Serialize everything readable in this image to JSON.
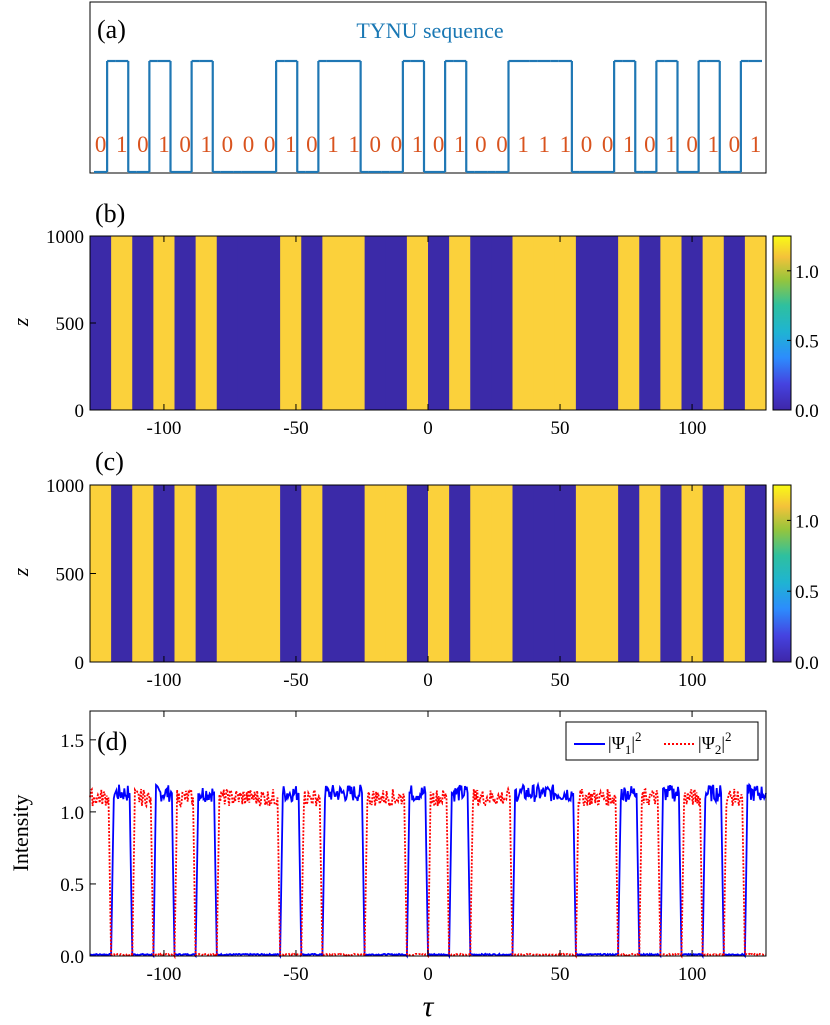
{
  "colors": {
    "seq_line": "#1f77b4",
    "seq_title": "#1a78b4",
    "bits": "#d9531e",
    "high": "#fbd13b",
    "low": "#3b2aa8",
    "psi1": "#0000ff",
    "psi2": "#ff0000"
  },
  "chart_data": [
    {
      "panel": "(a)",
      "type": "line",
      "title": "TYNU sequence",
      "sequence": [
        0,
        1,
        0,
        1,
        0,
        1,
        0,
        0,
        0,
        1,
        0,
        1,
        1,
        0,
        0,
        1,
        0,
        1,
        0,
        0,
        1,
        1,
        1,
        0,
        0,
        1,
        0,
        1,
        0,
        1,
        0,
        1
      ],
      "sequence_labels": [
        "0",
        "1",
        "0",
        "1",
        "0",
        "1",
        "0",
        "0",
        "0",
        "1",
        "0",
        "1",
        "1",
        "0",
        "0",
        "1",
        "0",
        "1",
        "0",
        "0",
        "1",
        "1",
        "1",
        "0",
        "0",
        "1",
        "0",
        "1",
        "0",
        "1",
        "0",
        "1"
      ]
    },
    {
      "panel": "(b)",
      "type": "heatmap",
      "ylabel": "z",
      "ylim": [
        0,
        1000
      ],
      "yticks": [
        "1000",
        "500",
        "0"
      ],
      "xlim": [
        -128,
        128
      ],
      "xticks": [
        "-100",
        "-50",
        "0",
        "50",
        "100"
      ],
      "colorbar": {
        "range": [
          0,
          1.25
        ],
        "ticks": [
          "1.0",
          "0.5",
          "0.0"
        ]
      },
      "high_bits": [
        0,
        1,
        0,
        1,
        0,
        1,
        0,
        0,
        0,
        1,
        0,
        1,
        1,
        0,
        0,
        1,
        0,
        1,
        0,
        0,
        1,
        1,
        1,
        0,
        0,
        1,
        0,
        1,
        0,
        1,
        0,
        1
      ],
      "high_value": 1.15
    },
    {
      "panel": "(c)",
      "type": "heatmap",
      "ylabel": "z",
      "ylim": [
        0,
        1000
      ],
      "yticks": [
        "1000",
        "500",
        "0"
      ],
      "xlim": [
        -128,
        128
      ],
      "xticks": [
        "-100",
        "-50",
        "0",
        "50",
        "100"
      ],
      "colorbar": {
        "range": [
          0,
          1.25
        ],
        "ticks": [
          "1.0",
          "0.5",
          "0.0"
        ]
      },
      "high_bits": [
        1,
        0,
        1,
        0,
        1,
        0,
        1,
        1,
        1,
        0,
        1,
        0,
        0,
        1,
        1,
        0,
        1,
        0,
        1,
        1,
        0,
        0,
        0,
        1,
        1,
        0,
        1,
        0,
        1,
        0,
        1,
        0
      ],
      "high_value": 1.1
    },
    {
      "panel": "(d)",
      "type": "line",
      "xlabel": "τ",
      "ylabel": "Intensity",
      "xlim": [
        -128,
        128
      ],
      "ylim": [
        0,
        1.7
      ],
      "xticks": [
        "-100",
        "-50",
        "0",
        "50",
        "100"
      ],
      "yticks": [
        "1.5",
        "1.0",
        "0.5",
        "0.0"
      ],
      "legend": "top-right",
      "series": [
        {
          "name": "|Ψ1|²",
          "style": "solid",
          "level": 1.13,
          "bits": [
            0,
            1,
            0,
            1,
            0,
            1,
            0,
            0,
            0,
            1,
            0,
            1,
            1,
            0,
            0,
            1,
            0,
            1,
            0,
            0,
            1,
            1,
            1,
            0,
            0,
            1,
            0,
            1,
            0,
            1,
            0,
            1
          ]
        },
        {
          "name": "|Ψ2|²",
          "style": "dotted",
          "level": 1.1,
          "bits": [
            1,
            0,
            1,
            0,
            1,
            0,
            1,
            1,
            1,
            0,
            1,
            0,
            0,
            1,
            1,
            0,
            1,
            0,
            1,
            1,
            0,
            0,
            0,
            1,
            1,
            0,
            1,
            0,
            1,
            0,
            1,
            0
          ]
        }
      ],
      "legend_entries": [
        {
          "base": "|Ψ",
          "sub": "1",
          "close": "|",
          "sup": "2"
        },
        {
          "base": "|Ψ",
          "sub": "2",
          "close": "|",
          "sup": "2"
        }
      ]
    }
  ]
}
